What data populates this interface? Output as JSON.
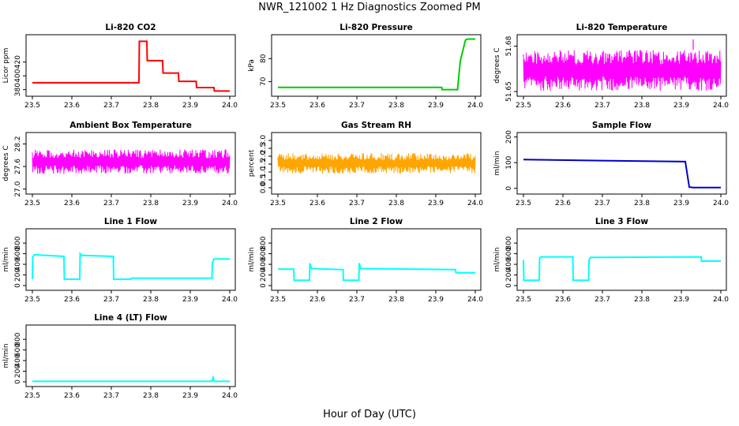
{
  "title": "NWR_121002  1 Hz Diagnostics Zoomed PM",
  "xlabel": "Hour of Day (UTC)",
  "chart_data": [
    {
      "type": "line",
      "title": "Li-820 CO2",
      "ylabel": "Licor ppm",
      "xlim": [
        23.5,
        24.0
      ],
      "ylim": [
        375,
        455
      ],
      "yticks": [
        {
          "v": 380,
          "label": "380"
        },
        {
          "v": 400,
          "label": "400"
        },
        {
          "v": 420,
          "label": "420"
        }
      ],
      "series": [
        {
          "color": "#ff0000",
          "x": [
            23.5,
            23.77,
            23.771,
            23.79,
            23.791,
            23.83,
            23.831,
            23.87,
            23.871,
            23.915,
            23.916,
            23.96,
            23.961,
            24.0
          ],
          "y": [
            390,
            390,
            450,
            450,
            422,
            422,
            404,
            404,
            392,
            392,
            383,
            383,
            378,
            378
          ]
        }
      ]
    },
    {
      "type": "line",
      "title": "Li-820 Pressure",
      "ylabel": "kPa",
      "xlim": [
        23.5,
        24.0
      ],
      "ylim": [
        65,
        89
      ],
      "yticks": [
        {
          "v": 70,
          "label": "70"
        },
        {
          "v": 80,
          "label": "80"
        }
      ],
      "series": [
        {
          "color": "#00cc00",
          "x": [
            23.5,
            23.915,
            23.916,
            23.955,
            23.962,
            23.975,
            23.98,
            24.0
          ],
          "y": [
            67.5,
            67.5,
            66.5,
            66.5,
            79,
            88,
            88.5,
            88.5
          ]
        }
      ]
    },
    {
      "type": "line",
      "title": "Li-820 Temperature",
      "ylabel": "degrees C",
      "xlim": [
        23.5,
        24.0
      ],
      "ylim": [
        51.649,
        51.6855
      ],
      "yticks": [
        {
          "v": 51.65,
          "label": "51.65"
        },
        {
          "v": 51.68,
          "label": "51.68"
        }
      ],
      "noise": {
        "color": "#ff00ff",
        "low": 51.6505,
        "high": 51.6775,
        "spike_x": 23.93,
        "spike_y": 51.6845
      },
      "series": []
    },
    {
      "type": "line",
      "title": "Ambient Box Temperature",
      "ylabel": "degrees C",
      "xlim": [
        23.5,
        24.0
      ],
      "ylim": [
        26.95,
        28.42
      ],
      "yticks": [
        {
          "v": 27.0,
          "label": "27.0"
        },
        {
          "v": 27.6,
          "label": "27.6"
        },
        {
          "v": 28.2,
          "label": "28.2"
        }
      ],
      "noise": {
        "color": "#ff00ff",
        "low": 27.4,
        "high": 28.05
      },
      "series": []
    },
    {
      "type": "line",
      "title": "Gas Stream RH",
      "ylabel": "percent",
      "xlim": [
        23.5,
        24.0
      ],
      "ylim": [
        -0.2,
        3.3
      ],
      "yticks": [
        {
          "v": 0.0,
          "label": "0.0"
        },
        {
          "v": 0.5,
          "label": "0.5"
        },
        {
          "v": 1.0,
          "label": "1.0"
        },
        {
          "v": 1.5,
          "label": "1.5"
        },
        {
          "v": 2.0,
          "label": "2.0"
        },
        {
          "v": 2.5,
          "label": "2.5"
        },
        {
          "v": 3.0,
          "label": "3.0"
        }
      ],
      "noise": {
        "color": "#ffa500",
        "low": 0.9,
        "high": 2.2
      },
      "series": []
    },
    {
      "type": "line",
      "title": "Sample Flow",
      "ylabel": "ml/min",
      "xlim": [
        23.5,
        24.0
      ],
      "ylim": [
        -10,
        205
      ],
      "yticks": [
        {
          "v": 0,
          "label": "0"
        },
        {
          "v": 100,
          "label": "100"
        },
        {
          "v": 200,
          "label": "200"
        }
      ],
      "series": [
        {
          "color": "#0000cc",
          "x": [
            23.5,
            23.7,
            23.91,
            23.92,
            23.93,
            24.0
          ],
          "y": [
            112,
            108,
            104,
            5,
            3,
            3
          ]
        }
      ]
    },
    {
      "type": "line",
      "title": "Line 1 Flow",
      "ylabel": "ml/min",
      "xlim": [
        23.5,
        24.0
      ],
      "ylim": [
        -30,
        1010
      ],
      "yticks": [
        {
          "v": 0,
          "label": "0"
        },
        {
          "v": 200,
          "label": "200"
        },
        {
          "v": 400,
          "label": "400"
        },
        {
          "v": 600,
          "label": "600"
        },
        {
          "v": 800,
          "label": "800"
        }
      ],
      "series": [
        {
          "color": "#00ffff",
          "x": [
            23.5,
            23.501,
            23.505,
            23.58,
            23.581,
            23.62,
            23.621,
            23.625,
            23.705,
            23.706,
            23.75,
            23.751,
            23.955,
            23.956,
            23.96,
            24.0
          ],
          "y": [
            120,
            540,
            580,
            550,
            120,
            120,
            600,
            570,
            550,
            120,
            120,
            140,
            140,
            420,
            500,
            500
          ]
        }
      ]
    },
    {
      "type": "line",
      "title": "Line 2 Flow",
      "ylabel": "ml/min",
      "xlim": [
        23.5,
        24.0
      ],
      "ylim": [
        -30,
        1010
      ],
      "yticks": [
        {
          "v": 0,
          "label": "0"
        },
        {
          "v": 200,
          "label": "200"
        },
        {
          "v": 400,
          "label": "400"
        },
        {
          "v": 600,
          "label": "600"
        },
        {
          "v": 800,
          "label": "800"
        }
      ],
      "series": [
        {
          "color": "#00ffff",
          "x": [
            23.5,
            23.54,
            23.541,
            23.58,
            23.581,
            23.585,
            23.665,
            23.666,
            23.705,
            23.706,
            23.71,
            23.95,
            23.951,
            24.0
          ],
          "y": [
            310,
            310,
            100,
            100,
            420,
            320,
            300,
            100,
            100,
            420,
            320,
            300,
            240,
            240
          ]
        }
      ]
    },
    {
      "type": "line",
      "title": "Line 3 Flow",
      "ylabel": "ml/min",
      "xlim": [
        23.5,
        24.0
      ],
      "ylim": [
        -30,
        1010
      ],
      "yticks": [
        {
          "v": 0,
          "label": "0"
        },
        {
          "v": 200,
          "label": "200"
        },
        {
          "v": 400,
          "label": "400"
        },
        {
          "v": 600,
          "label": "600"
        },
        {
          "v": 800,
          "label": "800"
        }
      ],
      "series": [
        {
          "color": "#00ffff",
          "x": [
            23.5,
            23.501,
            23.505,
            23.54,
            23.541,
            23.545,
            23.625,
            23.626,
            23.665,
            23.666,
            23.67,
            23.95,
            23.951,
            24.0
          ],
          "y": [
            480,
            100,
            100,
            100,
            520,
            540,
            540,
            100,
            100,
            480,
            530,
            540,
            460,
            460
          ]
        }
      ]
    },
    {
      "type": "line",
      "title": "Line 4 (LT) Flow",
      "ylabel": "ml/min",
      "xlim": [
        23.5,
        24.0
      ],
      "ylim": [
        -30,
        1010
      ],
      "yticks": [
        {
          "v": 0,
          "label": "0"
        },
        {
          "v": 200,
          "label": "200"
        },
        {
          "v": 400,
          "label": "400"
        },
        {
          "v": 600,
          "label": "600"
        },
        {
          "v": 800,
          "label": "800"
        }
      ],
      "series": [
        {
          "color": "#00ffff",
          "x": [
            23.5,
            23.955,
            23.958,
            23.961,
            23.965,
            24.0
          ],
          "y": [
            8,
            8,
            80,
            10,
            8,
            8
          ]
        }
      ]
    }
  ],
  "xticks": [
    {
      "v": 23.5,
      "label": "23.5"
    },
    {
      "v": 23.6,
      "label": "23.6"
    },
    {
      "v": 23.7,
      "label": "23.7"
    },
    {
      "v": 23.8,
      "label": "23.8"
    },
    {
      "v": 23.9,
      "label": "23.9"
    },
    {
      "v": 24.0,
      "label": "24.0"
    }
  ]
}
